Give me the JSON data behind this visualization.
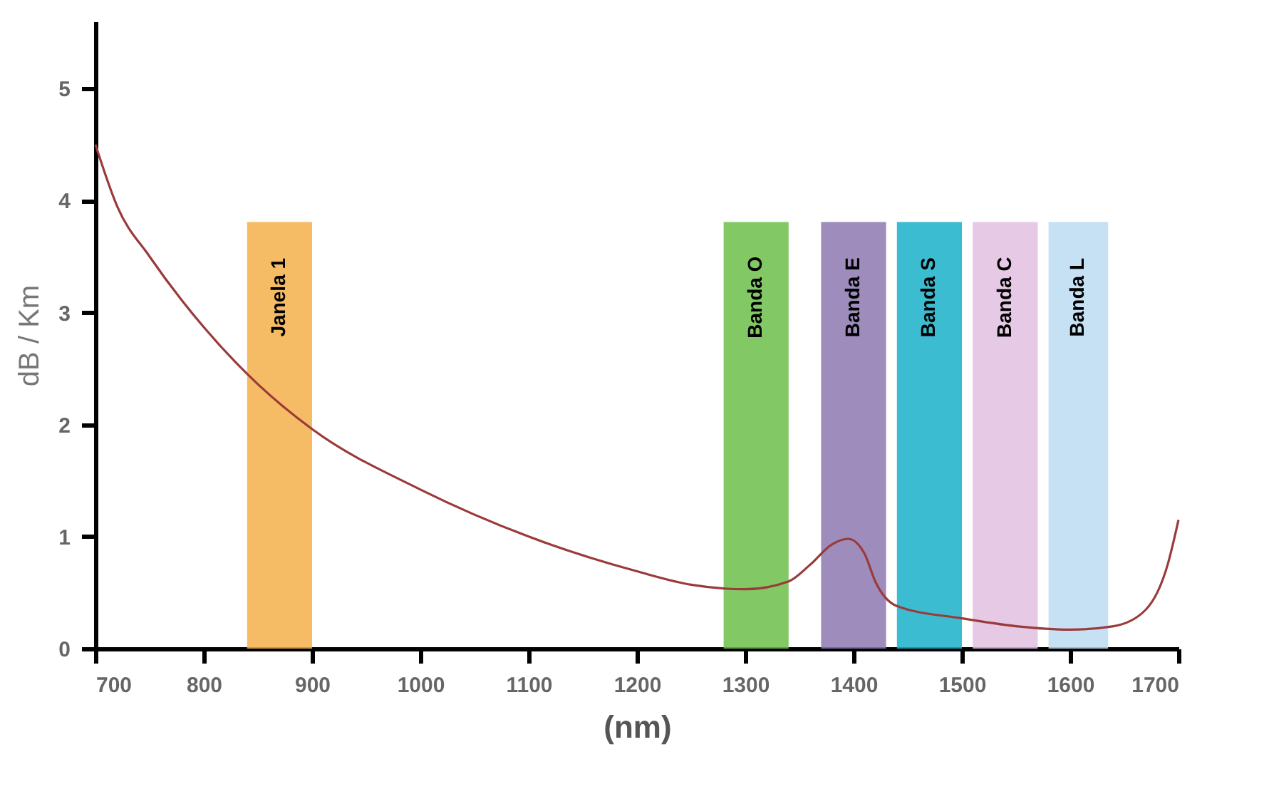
{
  "chart_data": {
    "type": "line",
    "xlabel": "(nm)",
    "ylabel": "dB / Km",
    "x": [
      700,
      720,
      750,
      800,
      850,
      900,
      1000,
      1100,
      1200,
      1250,
      1300,
      1340,
      1360,
      1380,
      1395,
      1410,
      1420,
      1440,
      1500,
      1550,
      1600,
      1640,
      1670,
      1690,
      1700
    ],
    "series": [
      {
        "color": "#9b3a3a",
        "values": [
          4.5,
          3.95,
          3.5,
          2.87,
          2.36,
          1.96,
          1.42,
          1.0,
          0.69,
          0.57,
          0.53,
          0.6,
          0.75,
          0.93,
          0.98,
          0.85,
          0.6,
          0.38,
          0.27,
          0.2,
          0.17,
          0.2,
          0.35,
          0.75,
          1.15
        ]
      }
    ],
    "xlim": [
      700,
      1700
    ],
    "xticks": [
      700,
      800,
      900,
      1000,
      1100,
      1200,
      1300,
      1400,
      1500,
      1600,
      1700
    ],
    "ylim": [
      0,
      5.6
    ],
    "yticks": [
      0,
      1,
      2,
      3,
      4,
      5
    ],
    "bands": [
      {
        "axis": "x",
        "from": 840,
        "to": 900,
        "label": "Janela 1",
        "color": "#f5b04a"
      },
      {
        "axis": "x",
        "from": 1280,
        "to": 1340,
        "label": "Banda O",
        "color": "#6cc04a"
      },
      {
        "axis": "x",
        "from": 1370,
        "to": 1430,
        "label": "Banda E",
        "color": "#8c78b0"
      },
      {
        "axis": "x",
        "from": 1440,
        "to": 1500,
        "label": "Banda S",
        "color": "#1ab0c8"
      },
      {
        "axis": "x",
        "from": 1510,
        "to": 1570,
        "label": "Banda C",
        "color": "#e0c0e0"
      },
      {
        "axis": "x",
        "from": 1580,
        "to": 1635,
        "label": "Banda L",
        "color": "#bcdcf2"
      }
    ],
    "grid": false,
    "marker": "none",
    "line_style": "solid"
  }
}
